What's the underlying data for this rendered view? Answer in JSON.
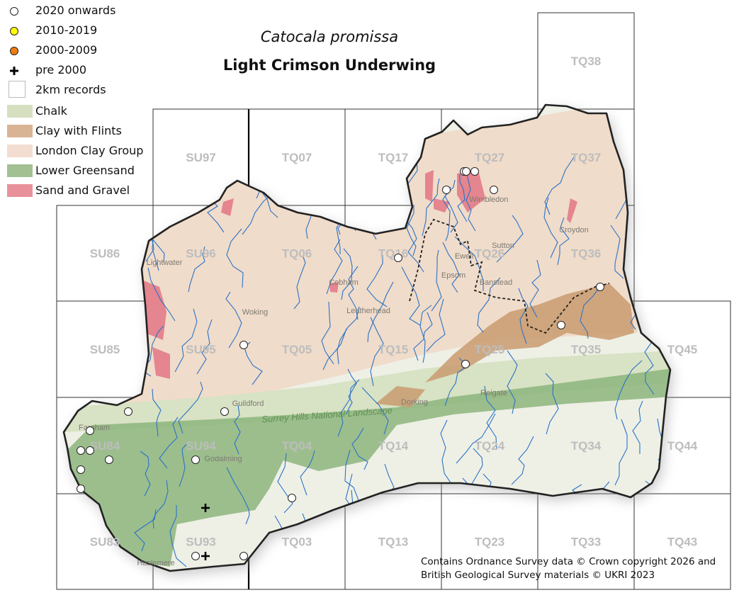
{
  "title": {
    "scientific_name": "Catocala promissa",
    "common_name": "Light Crimson Underwing"
  },
  "legend": {
    "items": [
      {
        "label": "2020 onwards",
        "symbol": "circle",
        "color": "#ffffff"
      },
      {
        "label": "2010-2019",
        "symbol": "circle",
        "color": "#ffff00"
      },
      {
        "label": "2000-2009",
        "symbol": "circle",
        "color": "#f07d10"
      },
      {
        "label": "pre 2000",
        "symbol": "plus",
        "color": "#000000"
      },
      {
        "label": "2km records",
        "symbol": "square",
        "color": "#ffffff"
      },
      {
        "label": "Chalk",
        "symbol": "fill",
        "color": "#d6dfc0"
      },
      {
        "label": "Clay with Flints",
        "symbol": "fill",
        "color": "#d9b494"
      },
      {
        "label": "London Clay Group",
        "symbol": "fill",
        "color": "#f2ddd0"
      },
      {
        "label": "Lower Greensand",
        "symbol": "fill",
        "color": "#a3c093"
      },
      {
        "label": "Sand and Gravel",
        "symbol": "fill",
        "color": "#e8919b"
      }
    ]
  },
  "grid_squares": [
    "TQ38",
    "SU97",
    "TQ07",
    "TQ17",
    "TQ27",
    "TQ37",
    "SU86",
    "SU96",
    "TQ06",
    "TQ16",
    "TQ26",
    "TQ36",
    "SU85",
    "SU95",
    "TQ05",
    "TQ15",
    "TQ25",
    "TQ35",
    "TQ45",
    "SU84",
    "SU94",
    "TQ04",
    "TQ14",
    "TQ24",
    "TQ34",
    "TQ44",
    "SU83",
    "SU93",
    "TQ03",
    "TQ13",
    "TQ23",
    "TQ33",
    "TQ43"
  ],
  "records": {
    "2020 onwards": [
      "TQ27",
      "TQ27",
      "TQ27",
      "TQ27",
      "TQ27",
      "TQ16",
      "TQ36",
      "TQ35",
      "SU95",
      "TQ25",
      "SU84",
      "SU94",
      "SU84",
      "SU84",
      "SU84",
      "SU84",
      "SU94",
      "SU84",
      "SU84",
      "TQ03",
      "SU93",
      "SU93"
    ],
    "pre 2000": [
      "SU93",
      "SU93"
    ]
  },
  "map_labels": [
    "Guildford",
    "Surrey Hills National Landscape",
    "Godalming",
    "Haslemere",
    "Farnham",
    "Woking",
    "Wimbledon",
    "Croydon",
    "Sutton",
    "Epsom",
    "Ewell",
    "Leatherhead",
    "Cobham",
    "Reigate",
    "Dorking",
    "Lightwater",
    "Banstead"
  ],
  "attribution": {
    "line1": "Contains Ordnance Survey data © Crown copyright 2026 and",
    "line2": "British Geological Survey materials © UKRI 2023"
  }
}
